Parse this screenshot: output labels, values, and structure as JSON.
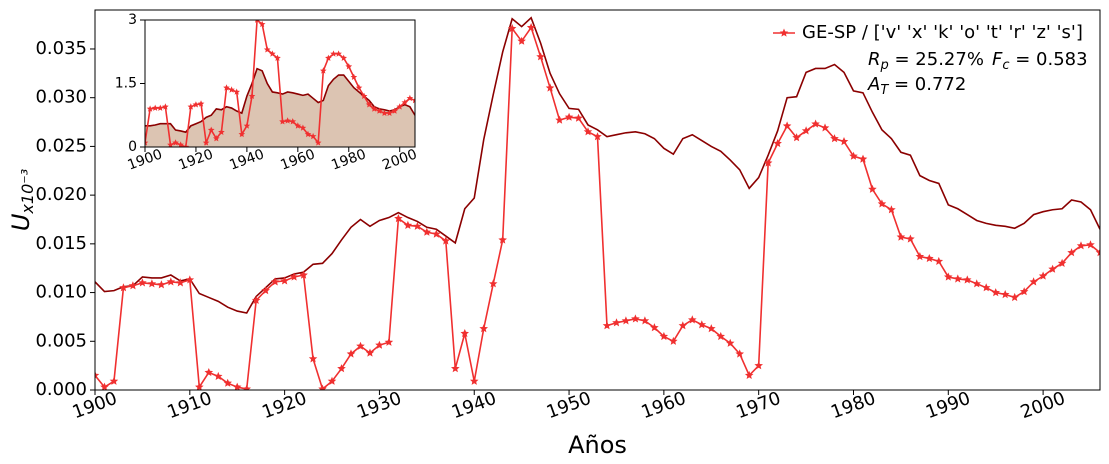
{
  "chart_data": [
    {
      "type": "line",
      "xlabel": "Años",
      "ylabel": {
        "main": "U",
        "sub": "x10⁻³"
      },
      "x": [
        1900,
        1901,
        1902,
        1903,
        1904,
        1905,
        1906,
        1907,
        1908,
        1909,
        1910,
        1911,
        1912,
        1913,
        1914,
        1915,
        1916,
        1917,
        1918,
        1919,
        1920,
        1921,
        1922,
        1923,
        1924,
        1925,
        1926,
        1927,
        1928,
        1929,
        1930,
        1931,
        1932,
        1933,
        1934,
        1935,
        1936,
        1937,
        1938,
        1939,
        1940,
        1941,
        1942,
        1943,
        1944,
        1945,
        1946,
        1947,
        1948,
        1949,
        1950,
        1951,
        1952,
        1953,
        1954,
        1955,
        1956,
        1957,
        1958,
        1959,
        1960,
        1961,
        1962,
        1963,
        1964,
        1965,
        1966,
        1967,
        1968,
        1969,
        1970,
        1971,
        1972,
        1973,
        1974,
        1975,
        1976,
        1977,
        1978,
        1979,
        1980,
        1981,
        1982,
        1983,
        1984,
        1985,
        1986,
        1987,
        1988,
        1989,
        1990,
        1991,
        1992,
        1993,
        1994,
        1995,
        1996,
        1997,
        1998,
        1999,
        2000,
        2001,
        2002,
        2003,
        2004,
        2005,
        2006
      ],
      "series": [
        {
          "name": "GE-SP / ['v' 'x' 'k' 'o' 't' 'r' 'z' 's']",
          "color": "#f03030",
          "marker": "star",
          "values": [
            0.0015,
            0.0003,
            0.0009,
            0.0105,
            0.0107,
            0.011,
            0.0109,
            0.0108,
            0.0111,
            0.011,
            0.0113,
            0.0003,
            0.0018,
            0.0014,
            0.0007,
            0.0003,
            0.0001,
            0.0092,
            0.0102,
            0.0111,
            0.0112,
            0.0116,
            0.0118,
            0.0032,
            0.0001,
            0.0009,
            0.0022,
            0.0037,
            0.0045,
            0.0038,
            0.0046,
            0.0049,
            0.0176,
            0.0169,
            0.0168,
            0.0162,
            0.016,
            0.0153,
            0.0022,
            0.0058,
            0.0009,
            0.0063,
            0.0109,
            0.0154,
            0.0371,
            0.0358,
            0.0372,
            0.0342,
            0.031,
            0.0277,
            0.028,
            0.0279,
            0.0265,
            0.026,
            0.0066,
            0.0069,
            0.0071,
            0.0073,
            0.0071,
            0.0064,
            0.0055,
            0.005,
            0.0066,
            0.0072,
            0.0067,
            0.0063,
            0.0055,
            0.0048,
            0.0037,
            0.0015,
            0.0025,
            0.0233,
            0.0253,
            0.0271,
            0.0259,
            0.0266,
            0.0273,
            0.0269,
            0.0258,
            0.0255,
            0.024,
            0.0237,
            0.0206,
            0.0191,
            0.0185,
            0.0157,
            0.0155,
            0.0137,
            0.0135,
            0.0132,
            0.0116,
            0.0114,
            0.0113,
            0.0109,
            0.0105,
            0.01,
            0.0098,
            0.0095,
            0.0101,
            0.0111,
            0.0117,
            0.0124,
            0.013,
            0.0141,
            0.0148,
            0.0149,
            0.0141
          ]
        },
        {
          "color": "#8b0000",
          "values": [
            0.0111,
            0.0101,
            0.0102,
            0.0106,
            0.0107,
            0.0116,
            0.0115,
            0.0115,
            0.0118,
            0.0112,
            0.0114,
            0.0099,
            0.0095,
            0.0091,
            0.0085,
            0.0081,
            0.0079,
            0.0096,
            0.0105,
            0.0114,
            0.0115,
            0.0119,
            0.0121,
            0.0129,
            0.013,
            0.014,
            0.0154,
            0.0167,
            0.0175,
            0.0168,
            0.0174,
            0.0177,
            0.0182,
            0.0177,
            0.0173,
            0.0167,
            0.0165,
            0.0158,
            0.0151,
            0.0186,
            0.0197,
            0.0257,
            0.0303,
            0.0347,
            0.0381,
            0.0373,
            0.0382,
            0.0356,
            0.0325,
            0.0304,
            0.0289,
            0.0288,
            0.0272,
            0.0267,
            0.026,
            0.0262,
            0.0264,
            0.0265,
            0.0263,
            0.0258,
            0.0248,
            0.0242,
            0.0258,
            0.0262,
            0.0256,
            0.025,
            0.0245,
            0.0236,
            0.0226,
            0.0207,
            0.0218,
            0.0241,
            0.0266,
            0.03,
            0.0301,
            0.0326,
            0.033,
            0.033,
            0.0334,
            0.0326,
            0.0307,
            0.0305,
            0.0285,
            0.0267,
            0.0258,
            0.0244,
            0.0241,
            0.022,
            0.0215,
            0.0212,
            0.019,
            0.0186,
            0.018,
            0.0174,
            0.0171,
            0.0169,
            0.0168,
            0.0166,
            0.0171,
            0.018,
            0.0183,
            0.0185,
            0.0186,
            0.0195,
            0.0193,
            0.0185,
            0.0165
          ]
        }
      ],
      "annotations": [
        {
          "var": "R",
          "sub": "p",
          "text": " = 25.27%"
        },
        {
          "var": "F",
          "sub": "c",
          "text": " = 0.583"
        },
        {
          "var": "A",
          "sub": "T",
          "text": " = 0.772"
        }
      ],
      "xlim": [
        1900,
        2006
      ],
      "ylim": [
        0,
        0.039
      ],
      "xticks": [
        1900,
        1910,
        1920,
        1930,
        1940,
        1950,
        1960,
        1970,
        1980,
        1990,
        2000
      ],
      "yticks": [
        {
          "value": 0,
          "label": "0.000"
        },
        {
          "value": 0.005,
          "label": "0.005"
        },
        {
          "value": 0.01,
          "label": "0.010"
        },
        {
          "value": 0.015,
          "label": "0.015"
        },
        {
          "value": 0.02,
          "label": "0.020"
        },
        {
          "value": 0.025,
          "label": "0.025"
        },
        {
          "value": 0.03,
          "label": "0.030"
        },
        {
          "value": 0.035,
          "label": "0.035"
        }
      ],
      "legend": "upper right",
      "grid": false
    },
    {
      "type": "line",
      "x": [
        1900,
        1902,
        1904,
        1906,
        1908,
        1910,
        1912,
        1914,
        1916,
        1918,
        1920,
        1922,
        1924,
        1926,
        1928,
        1930,
        1932,
        1934,
        1936,
        1938,
        1940,
        1942,
        1944,
        1946,
        1948,
        1950,
        1952,
        1954,
        1956,
        1958,
        1960,
        1962,
        1964,
        1966,
        1968,
        1970,
        1972,
        1974,
        1976,
        1978,
        1980,
        1982,
        1984,
        1986,
        1988,
        1990,
        1992,
        1994,
        1996,
        1998,
        2000,
        2002,
        2004,
        2006
      ],
      "series": [
        {
          "color": "#f03030",
          "marker": "star",
          "values": [
            0.1,
            0.9,
            0.92,
            0.92,
            0.95,
            0.05,
            0.1,
            0.05,
            0,
            0.95,
            1,
            1.02,
            0.1,
            0.4,
            0.2,
            0.35,
            1.4,
            1.35,
            1.3,
            0.3,
            0.5,
            1.2,
            3,
            2.9,
            2.3,
            2.2,
            2.1,
            0.6,
            0.62,
            0.6,
            0.5,
            0.45,
            0.3,
            0.25,
            0.1,
            1.8,
            2.1,
            2.2,
            2.2,
            2.1,
            1.9,
            1.65,
            1.4,
            1.2,
            1,
            0.9,
            0.85,
            0.8,
            0.8,
            0.85,
            0.95,
            1.05,
            1.15,
            1.1
          ]
        },
        {
          "color": "#8b0000",
          "fill_color": "#dcc4b2",
          "values": [
            0.5,
            0.5,
            0.52,
            0.55,
            0.55,
            0.55,
            0.4,
            0.38,
            0.35,
            0.5,
            0.55,
            0.6,
            0.7,
            0.75,
            0.9,
            0.88,
            0.95,
            0.92,
            0.85,
            0.8,
            1.2,
            1.5,
            1.85,
            1.8,
            1.5,
            1.3,
            1.28,
            1.25,
            1.3,
            1.28,
            1.25,
            1.22,
            1.25,
            1.15,
            1.05,
            1.1,
            1.45,
            1.6,
            1.7,
            1.7,
            1.55,
            1.4,
            1.3,
            1.2,
            1.1,
            0.95,
            0.9,
            0.88,
            0.85,
            0.88,
            0.95,
            1,
            0.95,
            0.75
          ]
        }
      ],
      "xlim": [
        1900,
        2006
      ],
      "ylim": [
        0,
        3
      ],
      "xticks": [
        1900,
        1920,
        1940,
        1960,
        1980,
        2000
      ],
      "yticks": [
        0,
        1.5,
        3
      ],
      "grid": false
    }
  ]
}
